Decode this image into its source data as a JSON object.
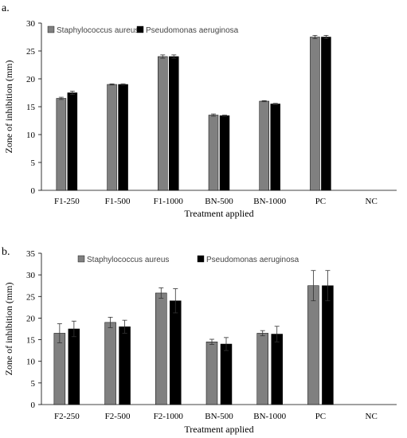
{
  "chart_data": [
    {
      "panel_label": "a.",
      "type": "bar",
      "categories": [
        "F1-250",
        "F1-500",
        "F1-1000",
        "BN-500",
        "BN-1000",
        "PC",
        "NC"
      ],
      "series": [
        {
          "name": "Staphylococcus aureus",
          "color": "#808080",
          "values": [
            16.5,
            19.0,
            24.0,
            13.5,
            16.0,
            27.5,
            0
          ],
          "errors": [
            0.2,
            0.1,
            0.3,
            0.2,
            0.1,
            0.3,
            0
          ]
        },
        {
          "name": "Pseudomonas aeruginosa",
          "color": "#000000",
          "values": [
            17.5,
            19.0,
            24.0,
            13.4,
            15.5,
            27.5,
            0
          ],
          "errors": [
            0.3,
            0.1,
            0.3,
            0.1,
            0.1,
            0.3,
            0
          ]
        }
      ],
      "ylabel": "Zone of inhibition (mm)",
      "xlabel": "Treatment applied",
      "ylim": [
        0,
        30
      ],
      "yticks": [
        0,
        5,
        10,
        15,
        20,
        25,
        30
      ],
      "grid": false,
      "legend_position": "top-left"
    },
    {
      "panel_label": "b.",
      "type": "bar",
      "categories": [
        "F2-250",
        "F2-500",
        "F2-1000",
        "BN-500",
        "BN-1000",
        "PC",
        "NC"
      ],
      "series": [
        {
          "name": "Staphylococcus aureus",
          "color": "#808080",
          "values": [
            16.5,
            19.0,
            25.8,
            14.5,
            16.5,
            27.5,
            0
          ],
          "errors": [
            2.2,
            1.2,
            1.2,
            0.6,
            0.6,
            3.5,
            0
          ]
        },
        {
          "name": "Pseudomonas aeruginosa",
          "color": "#000000",
          "values": [
            17.5,
            18.0,
            24.0,
            14.0,
            16.3,
            27.5,
            0
          ],
          "errors": [
            1.8,
            1.5,
            2.8,
            1.5,
            1.8,
            3.5,
            0
          ]
        }
      ],
      "ylabel": "Zone of inhibition (mm)",
      "xlabel": "Treatment applied",
      "ylim": [
        0,
        35
      ],
      "yticks": [
        0,
        5,
        10,
        15,
        20,
        25,
        30,
        35
      ],
      "grid": false,
      "legend_position": "top"
    }
  ]
}
